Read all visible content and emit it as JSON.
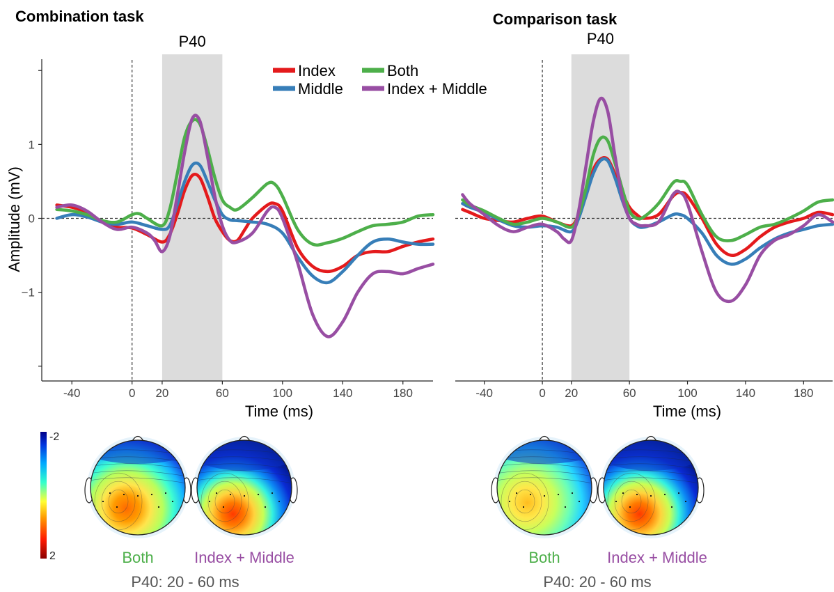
{
  "colors": {
    "index": "#e41a1c",
    "middle": "#377eb8",
    "both": "#4daf4a",
    "index_middle": "#984ea3",
    "band": "#dcdcdc"
  },
  "legend": [
    {
      "key": "index",
      "label": "Index"
    },
    {
      "key": "middle",
      "label": "Middle"
    },
    {
      "key": "both",
      "label": "Both"
    },
    {
      "key": "index_middle",
      "label": "Index + Middle"
    }
  ],
  "colorbar": {
    "min_label": "2",
    "max_label": "-2"
  },
  "chart_data": [
    {
      "type": "line",
      "title": "Combination task",
      "xlabel": "Time (ms)",
      "ylabel": "Amplitude (mV)",
      "xlim": [
        -60,
        200
      ],
      "ylim": [
        -2.2,
        2.2
      ],
      "xticks": [
        -40,
        0,
        20,
        60,
        100,
        140,
        180
      ],
      "yticks": [
        -1,
        0,
        1
      ],
      "ytick_labels": [
        "−1",
        "0",
        "1"
      ],
      "band": {
        "from": 20,
        "to": 60,
        "label": "P40"
      },
      "zero_lines": true,
      "series": [
        {
          "name": "Index",
          "key": "index",
          "x": [
            -50,
            -40,
            -30,
            -20,
            -10,
            0,
            10,
            20,
            25,
            30,
            35,
            40,
            45,
            50,
            55,
            60,
            65,
            70,
            75,
            80,
            90,
            95,
            100,
            110,
            120,
            130,
            140,
            150,
            160,
            170,
            180,
            190,
            200
          ],
          "y": [
            0.18,
            0.15,
            0.08,
            -0.05,
            -0.12,
            -0.13,
            -0.22,
            -0.32,
            -0.22,
            0.05,
            0.38,
            0.58,
            0.55,
            0.3,
            0.0,
            -0.18,
            -0.3,
            -0.3,
            -0.15,
            0.0,
            0.18,
            0.2,
            0.1,
            -0.4,
            -0.65,
            -0.72,
            -0.65,
            -0.5,
            -0.45,
            -0.45,
            -0.38,
            -0.32,
            -0.28
          ]
        },
        {
          "name": "Middle",
          "key": "middle",
          "x": [
            -50,
            -40,
            -30,
            -20,
            -10,
            0,
            10,
            20,
            25,
            30,
            35,
            40,
            45,
            50,
            55,
            60,
            65,
            70,
            80,
            90,
            100,
            110,
            120,
            130,
            140,
            150,
            160,
            170,
            180,
            190,
            200
          ],
          "y": [
            0.0,
            0.05,
            0.02,
            -0.05,
            -0.08,
            -0.05,
            -0.1,
            -0.15,
            -0.1,
            0.18,
            0.5,
            0.72,
            0.72,
            0.5,
            0.25,
            0.05,
            -0.02,
            -0.03,
            -0.05,
            -0.08,
            -0.2,
            -0.52,
            -0.78,
            -0.87,
            -0.72,
            -0.5,
            -0.32,
            -0.28,
            -0.32,
            -0.35,
            -0.35
          ]
        },
        {
          "name": "Both",
          "key": "both",
          "x": [
            -50,
            -40,
            -30,
            -20,
            -10,
            0,
            5,
            10,
            20,
            25,
            30,
            35,
            40,
            45,
            50,
            55,
            60,
            65,
            70,
            80,
            90,
            95,
            100,
            110,
            120,
            130,
            140,
            150,
            160,
            170,
            180,
            190,
            200
          ],
          "y": [
            0.12,
            0.1,
            0.05,
            -0.03,
            -0.05,
            0.05,
            0.06,
            0.0,
            -0.1,
            0.12,
            0.6,
            1.1,
            1.32,
            1.28,
            0.95,
            0.55,
            0.25,
            0.15,
            0.12,
            0.28,
            0.47,
            0.46,
            0.3,
            -0.15,
            -0.35,
            -0.33,
            -0.27,
            -0.18,
            -0.1,
            -0.08,
            -0.05,
            0.03,
            0.05
          ]
        },
        {
          "name": "Index + Middle",
          "key": "index_middle",
          "x": [
            -50,
            -40,
            -30,
            -20,
            -10,
            0,
            10,
            15,
            20,
            25,
            30,
            35,
            40,
            45,
            50,
            55,
            60,
            65,
            70,
            80,
            90,
            95,
            100,
            110,
            120,
            130,
            140,
            150,
            160,
            170,
            180,
            190,
            200
          ],
          "y": [
            0.15,
            0.18,
            0.1,
            -0.05,
            -0.15,
            -0.12,
            -0.2,
            -0.3,
            -0.45,
            -0.25,
            0.3,
            0.9,
            1.35,
            1.32,
            0.85,
            0.3,
            -0.1,
            -0.3,
            -0.32,
            -0.2,
            0.1,
            0.15,
            0.0,
            -0.6,
            -1.3,
            -1.6,
            -1.4,
            -1.0,
            -0.75,
            -0.72,
            -0.75,
            -0.68,
            -0.62
          ]
        }
      ]
    },
    {
      "type": "line",
      "title": "Comparison task",
      "xlabel": "Time (ms)",
      "ylabel": "",
      "xlim": [
        -60,
        200
      ],
      "ylim": [
        -2.2,
        2.2
      ],
      "xticks": [
        -40,
        0,
        20,
        60,
        100,
        140,
        180
      ],
      "yticks": [],
      "ytick_labels": [],
      "band": {
        "from": 20,
        "to": 60,
        "label": "P40"
      },
      "zero_lines": true,
      "series": [
        {
          "name": "Index",
          "key": "index",
          "x": [
            -55,
            -50,
            -40,
            -30,
            -20,
            -10,
            0,
            10,
            20,
            25,
            30,
            35,
            40,
            45,
            50,
            55,
            60,
            65,
            70,
            80,
            90,
            95,
            100,
            110,
            120,
            130,
            140,
            150,
            160,
            170,
            180,
            190,
            200
          ],
          "y": [
            0.12,
            0.08,
            0.0,
            -0.03,
            -0.05,
            0.0,
            0.03,
            -0.05,
            -0.1,
            0.05,
            0.3,
            0.65,
            0.8,
            0.8,
            0.6,
            0.35,
            0.15,
            0.05,
            0.0,
            0.05,
            0.3,
            0.35,
            0.3,
            0.0,
            -0.35,
            -0.5,
            -0.42,
            -0.25,
            -0.12,
            -0.05,
            0.0,
            0.08,
            0.05
          ]
        },
        {
          "name": "Middle",
          "key": "middle",
          "x": [
            -55,
            -50,
            -40,
            -30,
            -20,
            -10,
            0,
            10,
            20,
            25,
            30,
            35,
            40,
            45,
            50,
            55,
            60,
            65,
            70,
            80,
            90,
            95,
            100,
            110,
            120,
            130,
            140,
            150,
            160,
            170,
            180,
            190,
            200
          ],
          "y": [
            0.2,
            0.15,
            0.08,
            -0.02,
            -0.1,
            -0.12,
            -0.1,
            -0.12,
            -0.18,
            0.0,
            0.3,
            0.6,
            0.78,
            0.78,
            0.55,
            0.25,
            0.0,
            -0.1,
            -0.12,
            -0.05,
            0.05,
            0.05,
            0.0,
            -0.2,
            -0.5,
            -0.62,
            -0.55,
            -0.4,
            -0.28,
            -0.2,
            -0.15,
            -0.1,
            -0.08
          ]
        },
        {
          "name": "Both",
          "key": "both",
          "x": [
            -55,
            -50,
            -40,
            -30,
            -20,
            -10,
            0,
            10,
            20,
            25,
            30,
            35,
            40,
            45,
            50,
            55,
            60,
            65,
            70,
            80,
            90,
            95,
            100,
            110,
            120,
            130,
            140,
            150,
            160,
            170,
            180,
            190,
            200
          ],
          "y": [
            0.25,
            0.18,
            0.1,
            0.0,
            -0.08,
            -0.05,
            0.0,
            -0.05,
            -0.12,
            0.05,
            0.4,
            0.85,
            1.08,
            1.05,
            0.75,
            0.4,
            0.1,
            0.0,
            0.02,
            0.2,
            0.48,
            0.5,
            0.45,
            0.05,
            -0.25,
            -0.3,
            -0.22,
            -0.12,
            -0.08,
            0.0,
            0.1,
            0.22,
            0.25
          ]
        },
        {
          "name": "Index + Middle",
          "key": "index_middle",
          "x": [
            -55,
            -50,
            -40,
            -30,
            -20,
            -10,
            0,
            10,
            15,
            20,
            25,
            30,
            35,
            40,
            45,
            50,
            55,
            60,
            65,
            70,
            80,
            90,
            95,
            100,
            110,
            120,
            130,
            140,
            150,
            160,
            170,
            180,
            190,
            200
          ],
          "y": [
            0.32,
            0.2,
            0.05,
            -0.1,
            -0.18,
            -0.12,
            -0.08,
            -0.18,
            -0.28,
            -0.3,
            0.1,
            0.7,
            1.3,
            1.62,
            1.45,
            0.85,
            0.3,
            0.0,
            -0.08,
            -0.1,
            -0.05,
            0.32,
            0.35,
            0.2,
            -0.45,
            -1.0,
            -1.12,
            -0.9,
            -0.5,
            -0.3,
            -0.22,
            -0.1,
            0.05,
            -0.05
          ]
        }
      ]
    }
  ],
  "topomaps": [
    {
      "panel": "Combination task",
      "window_label": "P40: 20 - 60 ms",
      "maps": [
        {
          "key": "both",
          "label": "Both",
          "variant": "mild"
        },
        {
          "key": "index_middle",
          "label": "Index + Middle",
          "variant": "strong"
        }
      ]
    },
    {
      "panel": "Comparison task",
      "window_label": "P40: 20 - 60 ms",
      "maps": [
        {
          "key": "both",
          "label": "Both",
          "variant": "weak"
        },
        {
          "key": "index_middle",
          "label": "Index + Middle",
          "variant": "strong"
        }
      ]
    }
  ]
}
